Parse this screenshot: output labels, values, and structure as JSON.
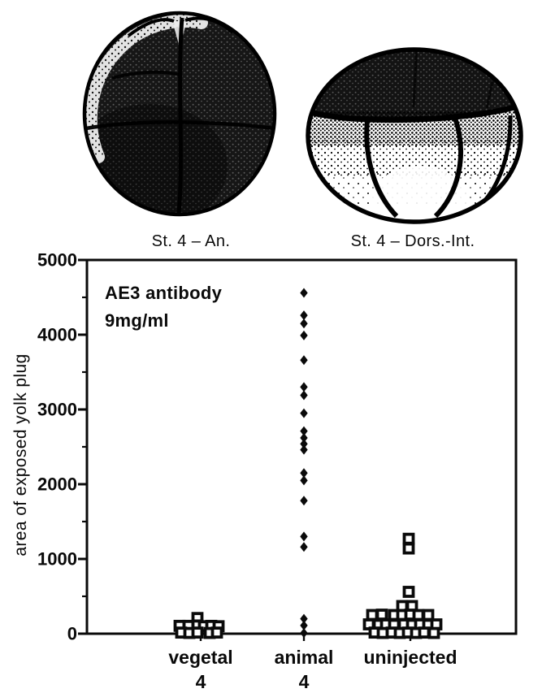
{
  "figure": {
    "left_caption": "St. 4 – An.",
    "right_caption": "St. 4 – Dors.-Int.",
    "annotation": {
      "line1": "AE3 antibody",
      "line2": "9mg/ml"
    }
  },
  "colors": {
    "ink": "#0a0a0a",
    "paper": "#ffffff"
  },
  "chart_data": {
    "type": "scatter",
    "title": "",
    "xlabel": "",
    "ylabel": "area of exposed yolk plug",
    "ylim": [
      0,
      5000
    ],
    "yticks": [
      0,
      1000,
      2000,
      3000,
      4000,
      5000
    ],
    "minor_tick_step": 500,
    "grid": false,
    "annotation": "AE3 antibody 9mg/ml",
    "categories": [
      {
        "label": "vegetal",
        "sublabel": "4",
        "marker": "open-square",
        "points": [
          {
            "dx": -4,
            "v": 210
          },
          {
            "dx": -26,
            "v": 105
          },
          {
            "dx": -15,
            "v": 105
          },
          {
            "dx": -4,
            "v": 110
          },
          {
            "dx": 4,
            "v": 100
          },
          {
            "dx": 13,
            "v": 105
          },
          {
            "dx": 22,
            "v": 100
          },
          {
            "dx": -24,
            "v": 15
          },
          {
            "dx": -14,
            "v": 10
          },
          {
            "dx": -4,
            "v": 15
          },
          {
            "dx": 11,
            "v": 10
          },
          {
            "dx": 20,
            "v": 15
          }
        ]
      },
      {
        "label": "animal",
        "sublabel": "4",
        "marker": "filled-diamond",
        "points": [
          {
            "dx": 0,
            "v": 4560
          },
          {
            "dx": 0,
            "v": 4260
          },
          {
            "dx": 0,
            "v": 4150
          },
          {
            "dx": 0,
            "v": 3990
          },
          {
            "dx": 0,
            "v": 3660
          },
          {
            "dx": 0,
            "v": 3300
          },
          {
            "dx": 0,
            "v": 3190
          },
          {
            "dx": 0,
            "v": 2950
          },
          {
            "dx": 0,
            "v": 2710
          },
          {
            "dx": 0,
            "v": 2620
          },
          {
            "dx": 0,
            "v": 2540
          },
          {
            "dx": 0,
            "v": 2460
          },
          {
            "dx": 0,
            "v": 2150
          },
          {
            "dx": 0,
            "v": 2050
          },
          {
            "dx": 0,
            "v": 1780
          },
          {
            "dx": 0,
            "v": 1300
          },
          {
            "dx": 0,
            "v": 1160
          },
          {
            "dx": 0,
            "v": 200
          },
          {
            "dx": 0,
            "v": 110
          },
          {
            "dx": 0,
            "v": 10
          }
        ]
      },
      {
        "label": "uninjected",
        "sublabel": "",
        "marker": "open-square",
        "points": [
          {
            "dx": -2,
            "v": 1270
          },
          {
            "dx": -2,
            "v": 1140
          },
          {
            "dx": -2,
            "v": 560
          },
          {
            "dx": -10,
            "v": 370
          },
          {
            "dx": 2,
            "v": 370
          },
          {
            "dx": -47,
            "v": 250
          },
          {
            "dx": -35,
            "v": 255
          },
          {
            "dx": -20,
            "v": 250
          },
          {
            "dx": -10,
            "v": 250
          },
          {
            "dx": 0,
            "v": 255
          },
          {
            "dx": 10,
            "v": 250
          },
          {
            "dx": 22,
            "v": 250
          },
          {
            "dx": -51,
            "v": 125
          },
          {
            "dx": -39,
            "v": 120
          },
          {
            "dx": -30,
            "v": 125
          },
          {
            "dx": -20,
            "v": 120
          },
          {
            "dx": -8,
            "v": 125
          },
          {
            "dx": 2,
            "v": 120
          },
          {
            "dx": 12,
            "v": 125
          },
          {
            "dx": 22,
            "v": 120
          },
          {
            "dx": 32,
            "v": 125
          },
          {
            "dx": -44,
            "v": 15
          },
          {
            "dx": -34,
            "v": 10
          },
          {
            "dx": -23,
            "v": 15
          },
          {
            "dx": -13,
            "v": 10
          },
          {
            "dx": -3,
            "v": 15
          },
          {
            "dx": 7,
            "v": 10
          },
          {
            "dx": 17,
            "v": 15
          },
          {
            "dx": 29,
            "v": 10
          }
        ]
      }
    ]
  }
}
